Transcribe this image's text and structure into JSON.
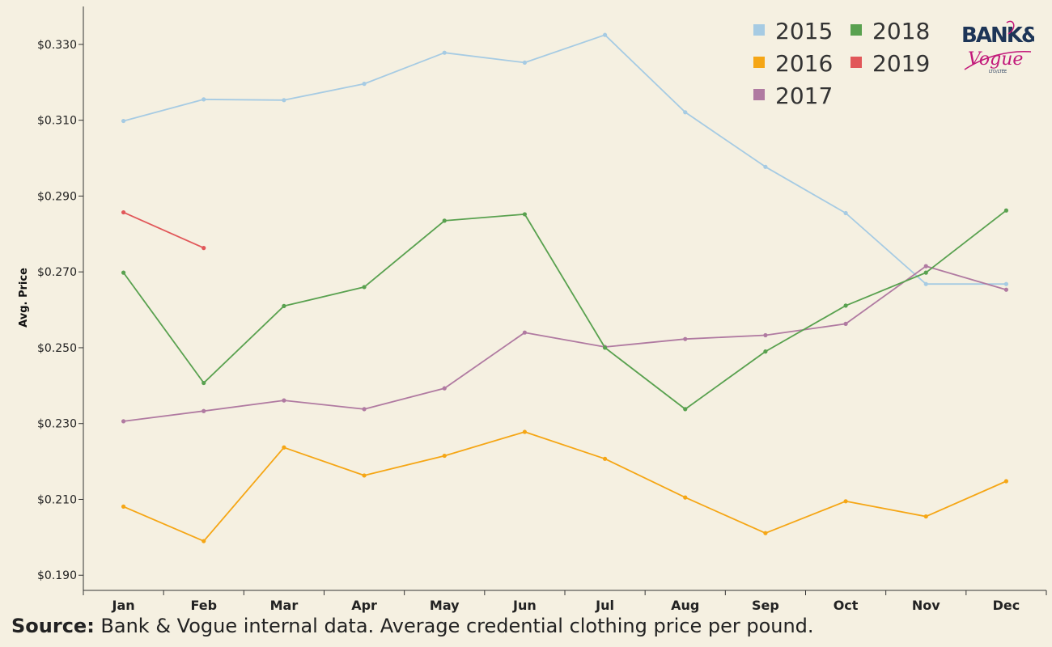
{
  "chart_data": {
    "type": "line",
    "ylabel": "Avg. Price",
    "xlabel": "",
    "ylim": [
      0.186,
      0.34
    ],
    "yticks": [
      0.19,
      0.21,
      0.23,
      0.25,
      0.27,
      0.29,
      0.31,
      0.33
    ],
    "ytick_labels": [
      "$0.190",
      "$0.210",
      "$0.230",
      "$0.250",
      "$0.270",
      "$0.290",
      "$0.310",
      "$0.330"
    ],
    "categories": [
      "Jan",
      "Feb",
      "Mar",
      "Apr",
      "May",
      "Jun",
      "Jul",
      "Aug",
      "Sep",
      "Oct",
      "Nov",
      "Dec"
    ],
    "grid": false,
    "legend_position": "top-right",
    "series": [
      {
        "name": "2015",
        "color": "#a6cbe3",
        "values": [
          0.3098,
          0.3155,
          0.3153,
          0.3196,
          0.3278,
          0.3252,
          0.3325,
          0.3121,
          0.2977,
          0.2855,
          0.2668,
          0.2668
        ]
      },
      {
        "name": "2016",
        "color": "#f5a615",
        "values": [
          0.2081,
          0.199,
          0.2237,
          0.2163,
          0.2215,
          0.2278,
          0.2207,
          0.2105,
          0.2011,
          0.2095,
          0.2055,
          0.2148
        ]
      },
      {
        "name": "2017",
        "color": "#b07aa1",
        "values": [
          0.2306,
          0.2333,
          0.2361,
          0.2338,
          0.2393,
          0.254,
          0.2502,
          0.2523,
          0.2533,
          0.2563,
          0.2715,
          0.2653
        ]
      },
      {
        "name": "2018",
        "color": "#59a14f",
        "values": [
          0.2698,
          0.2407,
          0.261,
          0.266,
          0.2835,
          0.2852,
          0.25,
          0.2338,
          0.249,
          0.2611,
          0.2698,
          0.2862
        ]
      },
      {
        "name": "2019",
        "color": "#e15759",
        "values": [
          0.2857,
          0.2763,
          null,
          null,
          null,
          null,
          null,
          null,
          null,
          null,
          null,
          null
        ]
      }
    ]
  },
  "source": {
    "label": "Source:",
    "text": " Bank & Vogue internal data.  Average credential clothing price per pound."
  },
  "logo": {
    "line1": "BANK&",
    "line2": "Vogue",
    "line3": "LTD/LTÉE",
    "colors": {
      "navy": "#1d3557",
      "magenta": "#c2187a"
    }
  }
}
